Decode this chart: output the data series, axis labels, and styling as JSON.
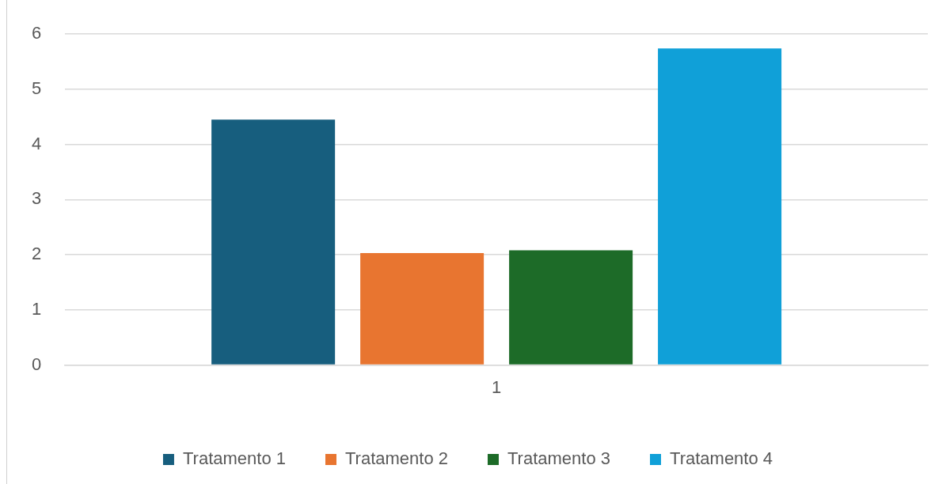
{
  "chart_data": {
    "type": "bar",
    "categories": [
      "1"
    ],
    "series": [
      {
        "name": "Tratamento 1",
        "color": "#175e7e",
        "values": [
          4.45
        ]
      },
      {
        "name": "Tratamento 2",
        "color": "#e87530",
        "values": [
          2.03
        ]
      },
      {
        "name": "Tratamento 3",
        "color": "#1d6b28",
        "values": [
          2.08
        ]
      },
      {
        "name": "Tratamento 4",
        "color": "#10a0d8",
        "values": [
          5.74
        ]
      }
    ],
    "ylim": [
      0,
      6
    ],
    "yticks": [
      0,
      1,
      2,
      3,
      4,
      5,
      6
    ],
    "grid": "y",
    "legend": "bottom"
  }
}
